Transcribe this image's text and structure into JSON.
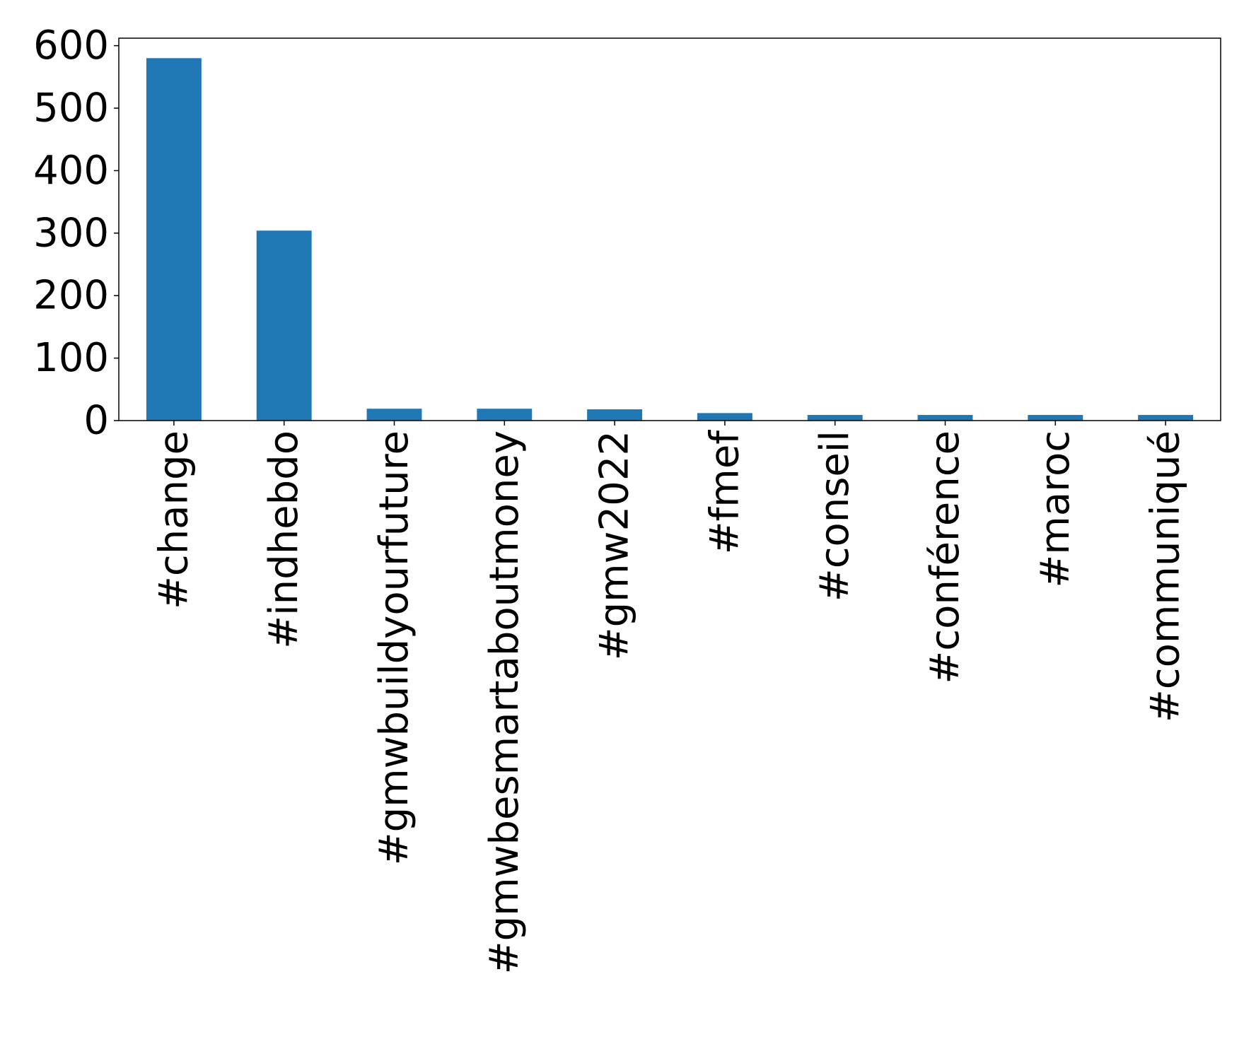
{
  "chart_data": {
    "type": "bar",
    "title": "",
    "xlabel": "",
    "ylabel": "",
    "categories": [
      "#change",
      "#indhebdo",
      "#gmwbuildyourfuture",
      "#gmwbesmartaboutmoney",
      "#gmw2022",
      "#fmef",
      "#conseil",
      "#conférence",
      "#maroc",
      "#communiqué"
    ],
    "values": [
      580,
      304,
      19,
      19,
      18,
      12,
      9,
      9,
      9,
      9
    ],
    "ylim": [
      0,
      612
    ],
    "yticks": [
      0,
      100,
      200,
      300,
      400,
      500,
      600
    ],
    "x_tick_rotation": 90,
    "bar_color": "#1f77b4",
    "grid": false,
    "legend": "none"
  }
}
